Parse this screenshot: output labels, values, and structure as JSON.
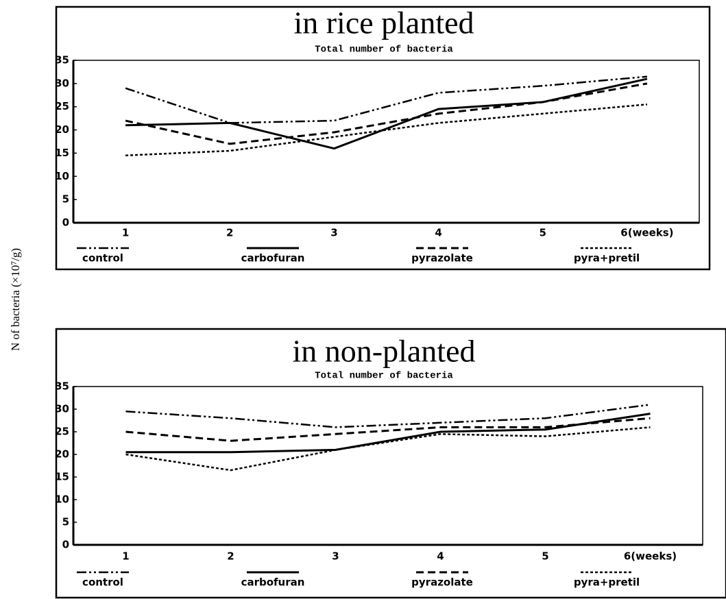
{
  "y_label": "N of bacteria (×10⁷/g)",
  "chart_data": [
    {
      "type": "line",
      "title": "in rice planted",
      "subtitle": "Total number of bacteria",
      "categories": [
        "1",
        "2",
        "3",
        "4",
        "5",
        "6(weeks)"
      ],
      "ylim": [
        0,
        35
      ],
      "yticks": [
        0,
        5,
        10,
        15,
        20,
        25,
        30,
        35
      ],
      "grid": false,
      "legend": "bottom",
      "series": [
        {
          "name": "control",
          "color": "#000000",
          "dash": "dash-dot-dot",
          "values": [
            29,
            21.5,
            22,
            28,
            29.5,
            31.5
          ]
        },
        {
          "name": "carbofuran",
          "color": "#000000",
          "dash": "solid",
          "values": [
            21,
            21.5,
            16,
            24.5,
            26,
            31
          ]
        },
        {
          "name": "pyrazolate",
          "color": "#000000",
          "dash": "dashed",
          "values": [
            22,
            17,
            19.5,
            23.5,
            26,
            30
          ]
        },
        {
          "name": "pyra+pretil",
          "color": "#000000",
          "dash": "dotted",
          "values": [
            14.5,
            15.5,
            18.5,
            21.5,
            23.5,
            25.5
          ]
        }
      ]
    },
    {
      "type": "line",
      "title": "in non-planted",
      "subtitle": "Total number of bacteria",
      "categories": [
        "1",
        "2",
        "3",
        "4",
        "5",
        "6(weeks)"
      ],
      "ylim": [
        0,
        35
      ],
      "yticks": [
        0,
        5,
        10,
        15,
        20,
        25,
        30,
        35
      ],
      "grid": false,
      "legend": "bottom",
      "series": [
        {
          "name": "control",
          "color": "#000000",
          "dash": "dash-dot-dot",
          "values": [
            29.5,
            28,
            26,
            27,
            28,
            31
          ]
        },
        {
          "name": "carbofuran",
          "color": "#000000",
          "dash": "solid",
          "values": [
            20.5,
            20.5,
            21,
            25,
            25.5,
            29
          ]
        },
        {
          "name": "pyrazolate",
          "color": "#000000",
          "dash": "dashed",
          "values": [
            25,
            23,
            24.5,
            26,
            26,
            28
          ]
        },
        {
          "name": "pyra+pretil",
          "color": "#000000",
          "dash": "dotted",
          "values": [
            20,
            16.5,
            21,
            24.5,
            24,
            26
          ]
        }
      ]
    }
  ]
}
